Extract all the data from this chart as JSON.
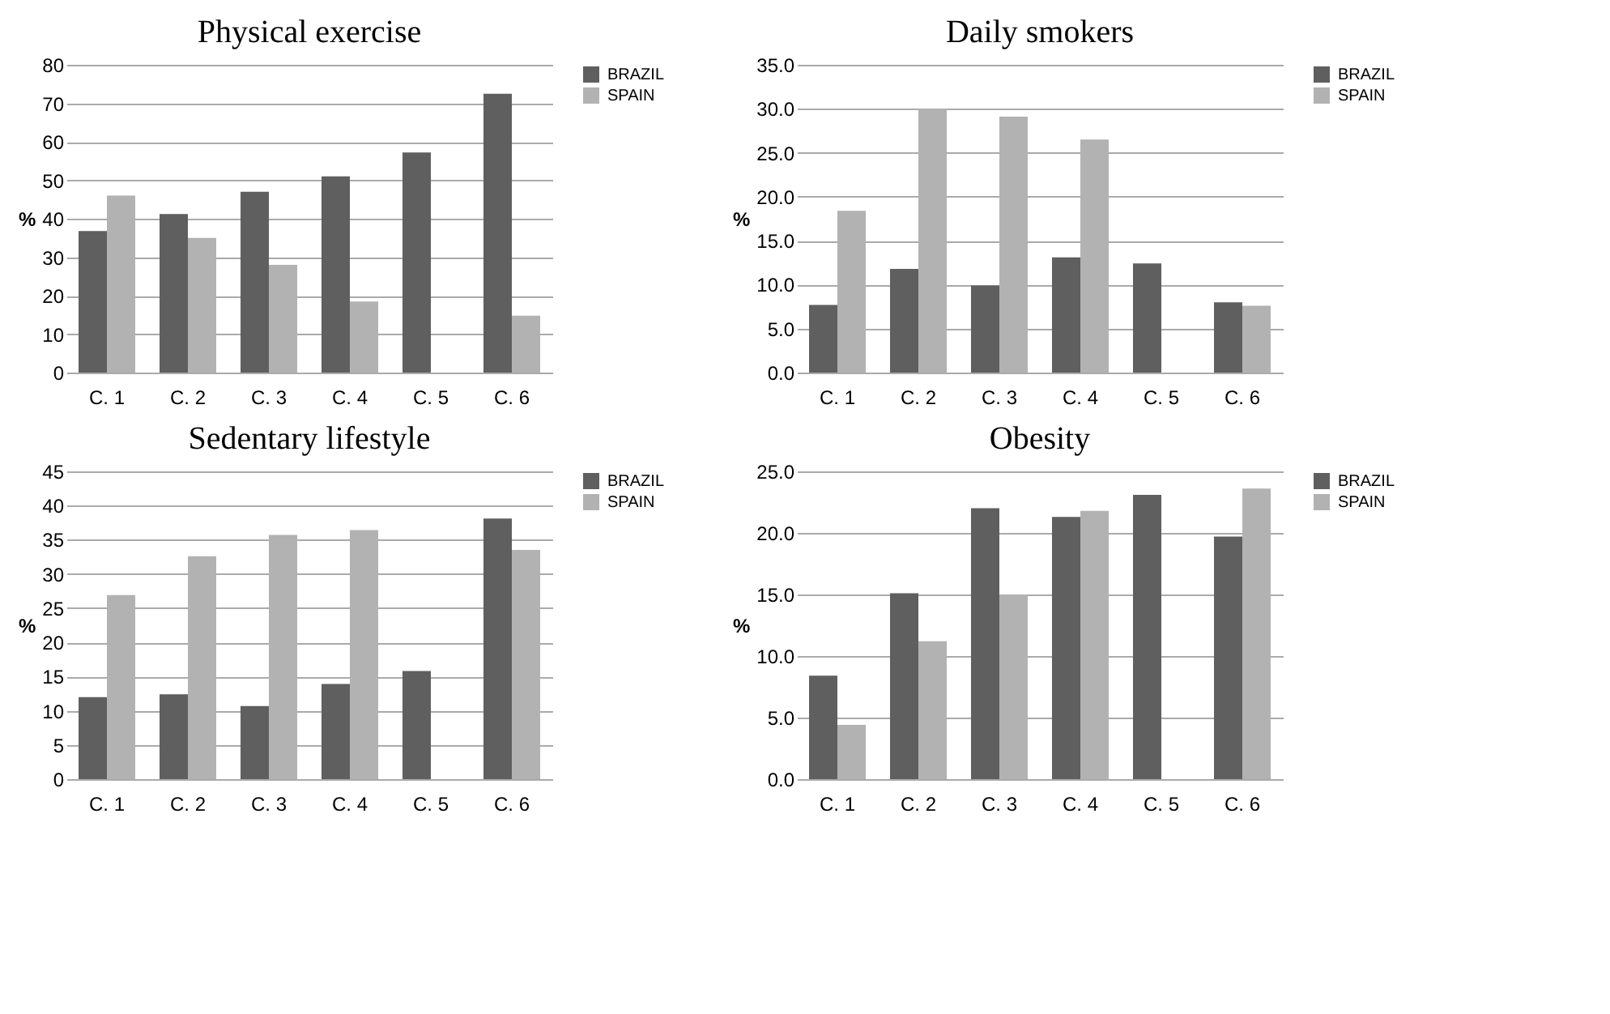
{
  "chart_data": [
    {
      "type": "bar",
      "title": "Physical exercise",
      "ylabel": "%",
      "categories": [
        "C. 1",
        "C. 2",
        "C. 3",
        "C. 4",
        "C. 5",
        "C. 6"
      ],
      "series": [
        {
          "name": "BRAZIL",
          "color": "#5f5f5f",
          "values": [
            36.8,
            41.2,
            47,
            51,
            57.2,
            72.5
          ]
        },
        {
          "name": "SPAIN",
          "color": "#b2b2b2",
          "values": [
            46,
            35,
            28,
            18.5,
            null,
            14.8
          ]
        }
      ],
      "ylim": [
        0,
        80
      ],
      "yticks": [
        0,
        10,
        20,
        30,
        40,
        50,
        60,
        70,
        80
      ],
      "grid": "y",
      "legend": "right"
    },
    {
      "type": "bar",
      "title": "Daily smokers",
      "ylabel": "%",
      "categories": [
        "C. 1",
        "C. 2",
        "C. 3",
        "C. 4",
        "C. 5",
        "C. 6"
      ],
      "series": [
        {
          "name": "BRAZIL",
          "color": "#5f5f5f",
          "values": [
            7.7,
            11.8,
            9.9,
            13.1,
            12.4,
            8.0
          ]
        },
        {
          "name": "SPAIN",
          "color": "#b2b2b2",
          "values": [
            18.4,
            30.0,
            29.1,
            26.5,
            null,
            7.6
          ]
        }
      ],
      "ylim": [
        0,
        35
      ],
      "yticks": [
        {
          "value": 0,
          "label": "0.0"
        },
        {
          "value": 5,
          "label": "5.0"
        },
        {
          "value": 10,
          "label": "10.0"
        },
        {
          "value": 15,
          "label": "15.0"
        },
        {
          "value": 20,
          "label": "20.0"
        },
        {
          "value": 25,
          "label": "25.0"
        },
        {
          "value": 30,
          "label": "30.0"
        },
        {
          "value": 35,
          "label": "35.0"
        }
      ],
      "grid": "y",
      "legend": "right"
    },
    {
      "type": "bar",
      "title": "Sedentary lifestyle",
      "ylabel": "%",
      "categories": [
        "C. 1",
        "C. 2",
        "C. 3",
        "C. 4",
        "C. 5",
        "C. 6"
      ],
      "series": [
        {
          "name": "BRAZIL",
          "color": "#5f5f5f",
          "values": [
            12,
            12.4,
            10.7,
            13.9,
            15.8,
            38.1
          ]
        },
        {
          "name": "SPAIN",
          "color": "#b2b2b2",
          "values": [
            26.9,
            32.6,
            35.7,
            36.4,
            null,
            33.5
          ]
        }
      ],
      "ylim": [
        0,
        45
      ],
      "yticks": [
        0,
        5,
        10,
        15,
        20,
        25,
        30,
        35,
        40,
        45
      ],
      "grid": "y",
      "legend": "right"
    },
    {
      "type": "bar",
      "title": "Obesity",
      "ylabel": "%",
      "categories": [
        "C. 1",
        "C. 2",
        "C. 3",
        "C. 4",
        "C. 5",
        "C. 6"
      ],
      "series": [
        {
          "name": "BRAZIL",
          "color": "#5f5f5f",
          "values": [
            8.4,
            15.1,
            22.0,
            21.3,
            23.1,
            19.7
          ]
        },
        {
          "name": "SPAIN",
          "color": "#b2b2b2",
          "values": [
            4.4,
            11.2,
            15.0,
            21.8,
            null,
            23.6
          ]
        }
      ],
      "ylim": [
        0,
        25
      ],
      "yticks": [
        {
          "value": 0,
          "label": "0.0"
        },
        {
          "value": 5,
          "label": "5.0"
        },
        {
          "value": 10,
          "label": "10.0"
        },
        {
          "value": 15,
          "label": "15.0"
        },
        {
          "value": 20,
          "label": "20.0"
        },
        {
          "value": 25,
          "label": "25.0"
        }
      ],
      "grid": "y",
      "legend": "right"
    }
  ]
}
